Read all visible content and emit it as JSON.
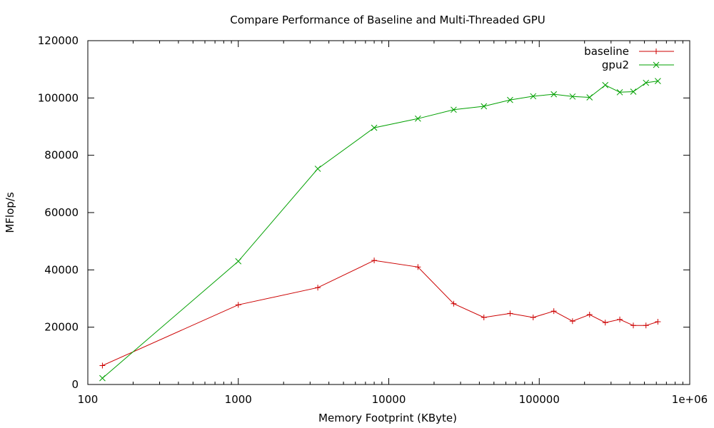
{
  "chart_data": {
    "type": "line",
    "title": "Compare Performance of Baseline and Multi-Threaded GPU",
    "xlabel": "Memory Footprint (KByte)",
    "ylabel": "MFlop/s",
    "xscale": "log",
    "xlim": [
      100,
      1000000
    ],
    "ylim": [
      0,
      120000
    ],
    "x_ticks": [
      100,
      1000,
      10000,
      100000,
      1000000
    ],
    "x_tick_labels": [
      "100",
      "1000",
      "10000",
      "100000",
      "1e+06"
    ],
    "y_ticks": [
      0,
      20000,
      40000,
      60000,
      80000,
      100000,
      120000
    ],
    "y_tick_labels": [
      "0",
      "20000",
      "40000",
      "60000",
      "80000",
      "100000",
      "120000"
    ],
    "grid": false,
    "legend_position": "top-right",
    "series": [
      {
        "name": "baseline",
        "color": "#cc0000",
        "marker": "plus",
        "x": [
          125,
          1000,
          3375,
          8000,
          15625,
          27000,
          42875,
          64000,
          91125,
          125000,
          166375,
          216000,
          274625,
          343000,
          421875,
          512000,
          614125
        ],
        "y": [
          6600,
          27800,
          33800,
          43300,
          41000,
          28200,
          23400,
          24800,
          23400,
          25600,
          22100,
          24400,
          21600,
          22700,
          20600,
          20600,
          21900
        ]
      },
      {
        "name": "gpu2",
        "color": "#00a000",
        "marker": "cross",
        "x": [
          125,
          1000,
          3375,
          8000,
          15625,
          27000,
          42875,
          64000,
          91125,
          125000,
          166375,
          216000,
          274625,
          343000,
          421875,
          512000,
          614125
        ],
        "y": [
          2200,
          43000,
          75300,
          89600,
          92800,
          95900,
          97100,
          99300,
          100600,
          101300,
          100500,
          100200,
          104500,
          102000,
          102200,
          105300,
          105900
        ]
      }
    ]
  }
}
